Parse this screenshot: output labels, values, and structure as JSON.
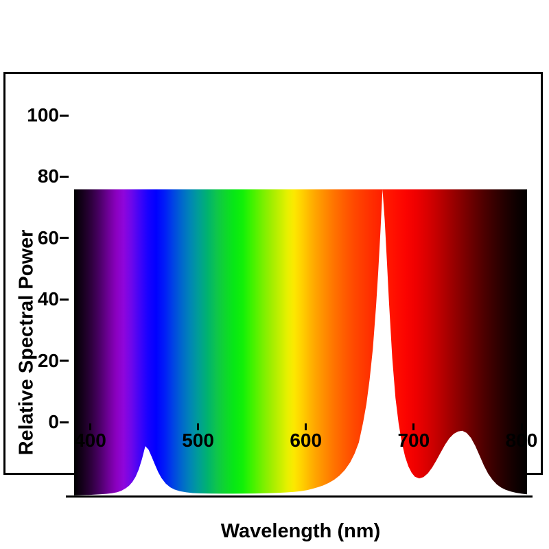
{
  "colors": {
    "background": "#ffffff",
    "frame_border": "#000000",
    "axis": "#000000",
    "text": "#000000",
    "area_fill": "#ffffff"
  },
  "chart_data": {
    "type": "area",
    "title": "",
    "xlabel": "Wavelength (nm)",
    "ylabel": "Relative Spectral Power",
    "xlim": [
      380,
      800
    ],
    "ylim": [
      0,
      100
    ],
    "x_ticks": [
      "400",
      "500",
      "600",
      "700",
      "800"
    ],
    "x_tick_values": [
      400,
      500,
      600,
      700,
      800
    ],
    "y_ticks": [
      "0",
      "20",
      "40",
      "60",
      "80",
      "100"
    ],
    "y_tick_values": [
      0,
      20,
      40,
      60,
      80,
      100
    ],
    "grid": false,
    "legend": "none",
    "background_style": "visible-spectrum-gradient",
    "area_under_curve_color": "#ffffff",
    "peaks": [
      {
        "wavelength_nm": 446,
        "relative_power": 16
      },
      {
        "wavelength_nm": 666,
        "relative_power": 100
      },
      {
        "wavelength_nm": 740,
        "relative_power": 21
      }
    ],
    "series": [
      {
        "name": "spectral-power-distribution",
        "x": [
          380,
          388,
          396,
          404,
          410,
          415,
          420,
          424,
          428,
          431,
          434,
          437,
          440,
          443,
          446,
          449,
          452,
          455,
          458,
          461,
          465,
          469,
          473,
          478,
          484,
          490,
          498,
          508,
          518,
          528,
          538,
          548,
          558,
          568,
          576,
          584,
          590,
          596,
          601,
          606,
          611,
          616,
          621,
          626,
          631,
          636,
          640,
          644,
          648,
          651,
          654,
          657,
          660,
          662,
          664,
          666,
          668,
          670,
          672,
          675,
          678,
          681,
          684,
          687,
          690,
          693,
          696,
          700,
          704,
          708,
          712,
          716,
          720,
          724,
          728,
          732,
          736,
          740,
          744,
          748,
          752,
          756,
          760,
          764,
          768,
          772,
          776,
          780,
          785,
          790,
          795,
          800
        ],
        "y": [
          0.3,
          0.35,
          0.45,
          0.6,
          0.75,
          0.95,
          1.3,
          1.8,
          2.6,
          3.4,
          4.6,
          6.3,
          8.8,
          12.2,
          16.3,
          15.2,
          12.8,
          10.2,
          7.8,
          5.9,
          4.1,
          2.9,
          2.2,
          1.6,
          1.25,
          1.0,
          0.9,
          0.82,
          0.8,
          0.8,
          0.82,
          0.88,
          0.95,
          1.05,
          1.2,
          1.4,
          1.6,
          1.95,
          2.4,
          2.9,
          3.5,
          4.3,
          5.3,
          6.7,
          8.5,
          11.0,
          13.8,
          17.5,
          24.0,
          30.0,
          38.0,
          48.0,
          62.0,
          73.0,
          86.0,
          100.0,
          90.0,
          77.0,
          63.0,
          45.0,
          32.0,
          23.5,
          17.3,
          12.8,
          9.7,
          7.6,
          6.3,
          5.8,
          6.2,
          7.4,
          9.3,
          11.7,
          14.3,
          16.8,
          18.9,
          20.3,
          21.1,
          21.3,
          20.6,
          19.0,
          16.4,
          13.2,
          10.0,
          7.3,
          5.3,
          3.8,
          2.8,
          2.1,
          1.5,
          1.1,
          0.8,
          0.6
        ]
      }
    ],
    "spectrum_stops": [
      {
        "nm": 380,
        "color": "#000000"
      },
      {
        "nm": 388,
        "color": "#16001d"
      },
      {
        "nm": 396,
        "color": "#2e003e"
      },
      {
        "nm": 404,
        "color": "#4c0068"
      },
      {
        "nm": 412,
        "color": "#6f0098"
      },
      {
        "nm": 419,
        "color": "#8b00c0"
      },
      {
        "nm": 426,
        "color": "#8f06db"
      },
      {
        "nm": 433,
        "color": "#6e07ea"
      },
      {
        "nm": 440,
        "color": "#4504f6"
      },
      {
        "nm": 448,
        "color": "#1a01ff"
      },
      {
        "nm": 456,
        "color": "#0000ff"
      },
      {
        "nm": 464,
        "color": "#001cf8"
      },
      {
        "nm": 472,
        "color": "#0044e4"
      },
      {
        "nm": 480,
        "color": "#0068cc"
      },
      {
        "nm": 488,
        "color": "#0087b4"
      },
      {
        "nm": 496,
        "color": "#009f94"
      },
      {
        "nm": 504,
        "color": "#00b36e"
      },
      {
        "nm": 512,
        "color": "#0ec54c"
      },
      {
        "nm": 520,
        "color": "#0ed62e"
      },
      {
        "nm": 528,
        "color": "#07e716"
      },
      {
        "nm": 536,
        "color": "#10f008"
      },
      {
        "nm": 545,
        "color": "#3ff300"
      },
      {
        "nm": 554,
        "color": "#72f000"
      },
      {
        "nm": 563,
        "color": "#a0ee00"
      },
      {
        "nm": 571,
        "color": "#c6ef00"
      },
      {
        "nm": 578,
        "color": "#e8f000"
      },
      {
        "nm": 584,
        "color": "#fce800"
      },
      {
        "nm": 590,
        "color": "#ffd500"
      },
      {
        "nm": 597,
        "color": "#ffbc00"
      },
      {
        "nm": 604,
        "color": "#ffa400"
      },
      {
        "nm": 612,
        "color": "#ff8d00"
      },
      {
        "nm": 620,
        "color": "#ff7600"
      },
      {
        "nm": 629,
        "color": "#ff6000"
      },
      {
        "nm": 638,
        "color": "#ff4c00"
      },
      {
        "nm": 648,
        "color": "#ff3a00"
      },
      {
        "nm": 658,
        "color": "#ff2a00"
      },
      {
        "nm": 668,
        "color": "#ff1c00"
      },
      {
        "nm": 678,
        "color": "#ff0e00"
      },
      {
        "nm": 688,
        "color": "#fb0300"
      },
      {
        "nm": 698,
        "color": "#ed0000"
      },
      {
        "nm": 708,
        "color": "#d80000"
      },
      {
        "nm": 718,
        "color": "#bf0000"
      },
      {
        "nm": 728,
        "color": "#a30000"
      },
      {
        "nm": 739,
        "color": "#850000"
      },
      {
        "nm": 750,
        "color": "#670000"
      },
      {
        "nm": 761,
        "color": "#4b0000"
      },
      {
        "nm": 772,
        "color": "#320000"
      },
      {
        "nm": 782,
        "color": "#1d0000"
      },
      {
        "nm": 791,
        "color": "#0d0000"
      },
      {
        "nm": 800,
        "color": "#020000"
      }
    ]
  }
}
